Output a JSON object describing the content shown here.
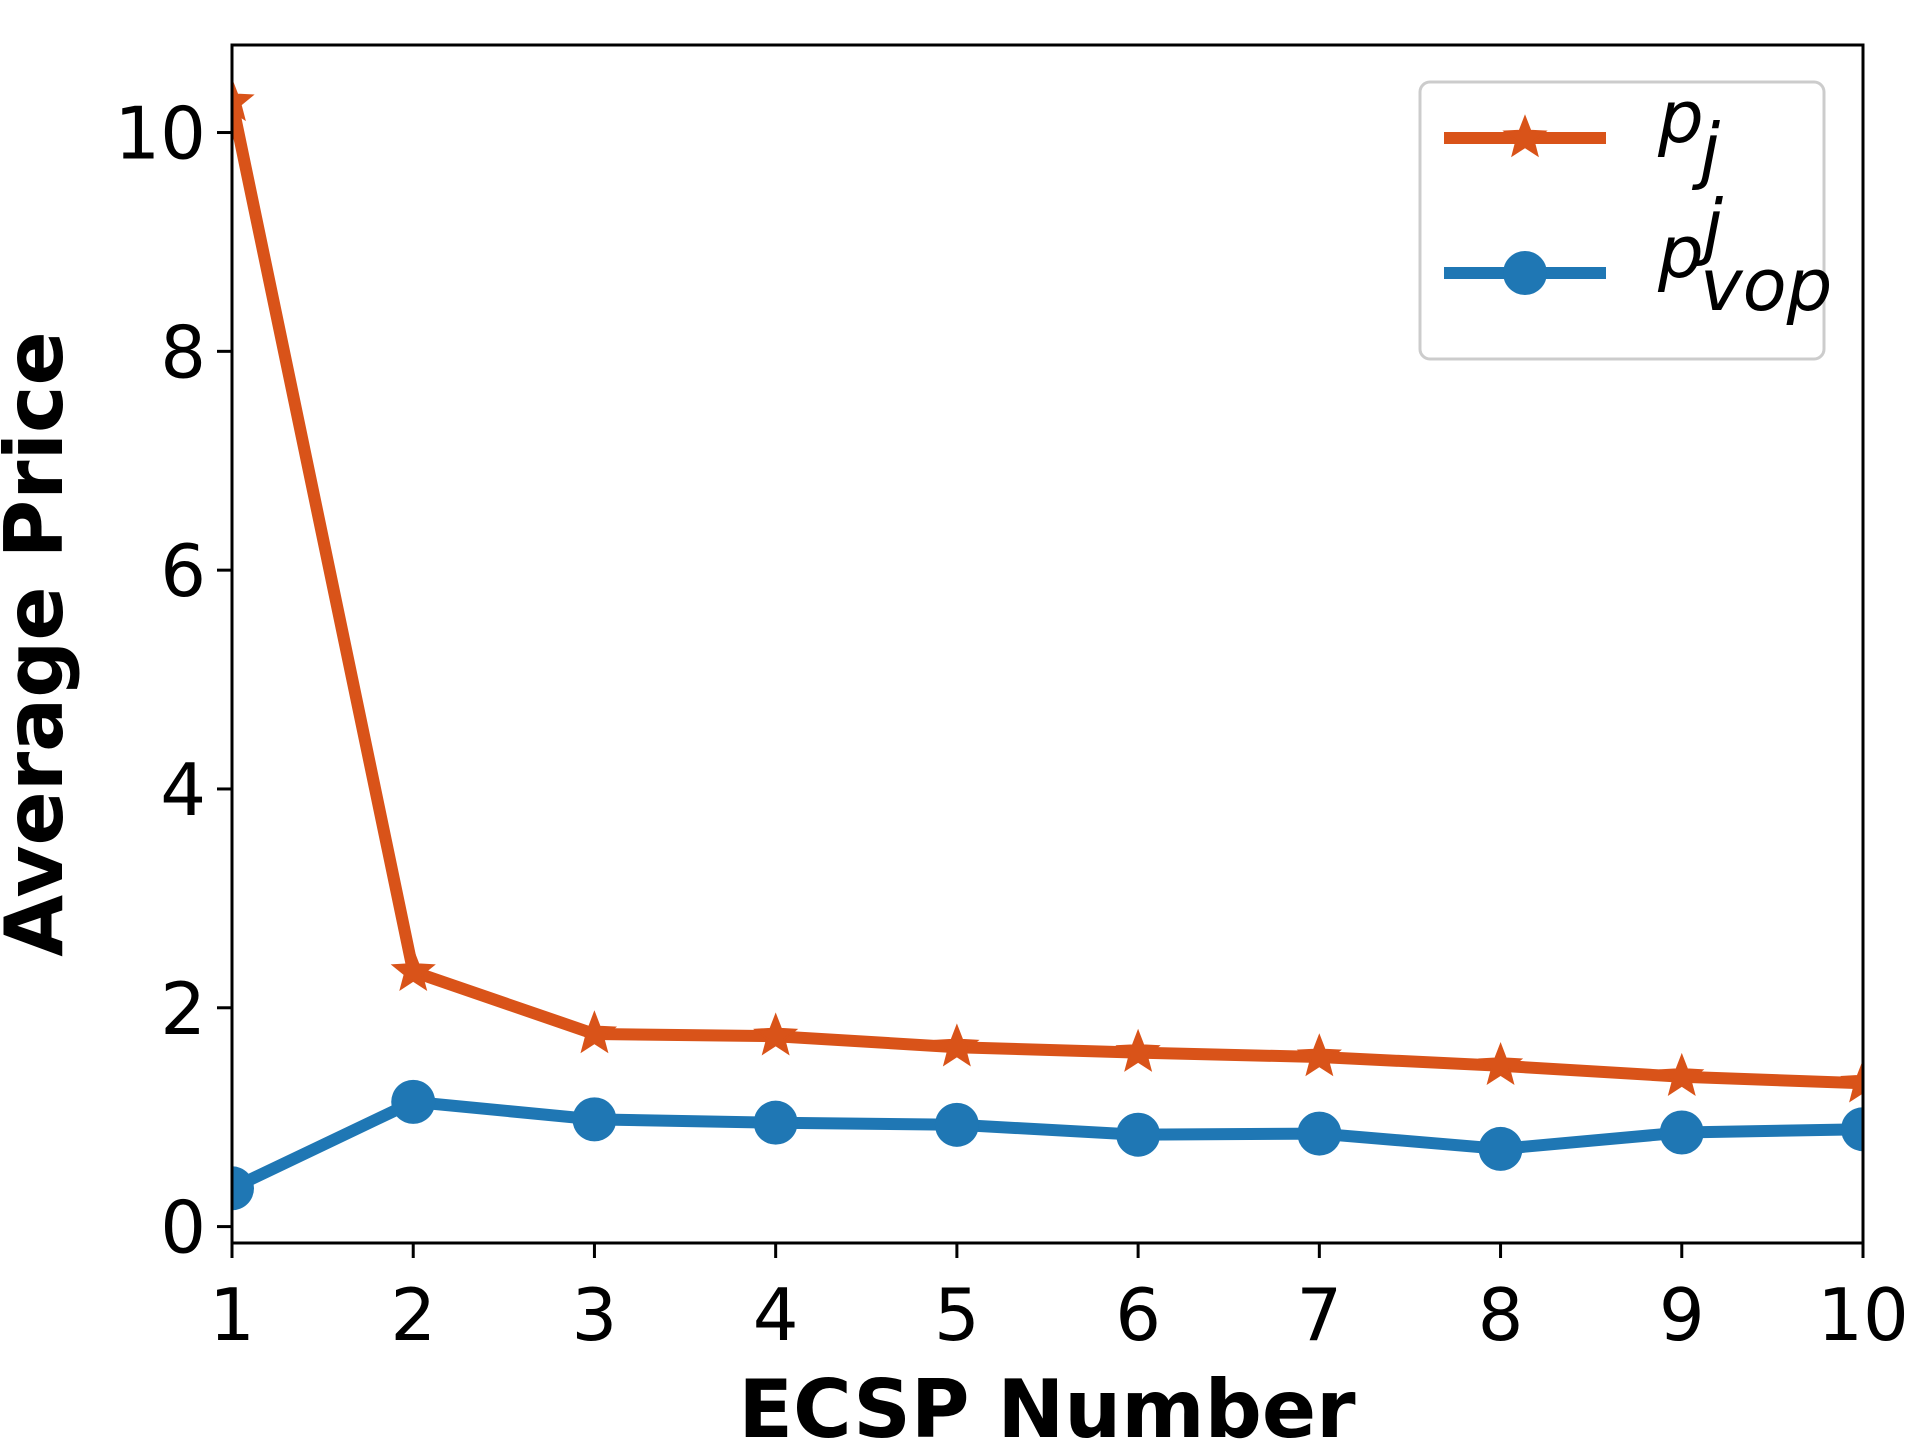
{
  "chart_data": {
    "type": "line",
    "title": "",
    "xlabel": "ECSP Number",
    "ylabel": "Average Price",
    "x": [
      1,
      2,
      3,
      4,
      5,
      6,
      7,
      8,
      9,
      10
    ],
    "xlim": [
      1,
      10
    ],
    "ylim": [
      -0.15,
      10.8
    ],
    "xticks": [
      1,
      2,
      3,
      4,
      5,
      6,
      7,
      8,
      9,
      10
    ],
    "yticks": [
      0,
      2,
      4,
      6,
      8,
      10
    ],
    "grid": false,
    "legend_position": "top-right",
    "series": [
      {
        "name": "p_j",
        "legend_base": "p",
        "legend_sub": "j",
        "legend_sup": "",
        "marker": "star",
        "color": "#d95319",
        "values": [
          10.28,
          2.33,
          1.76,
          1.74,
          1.64,
          1.59,
          1.55,
          1.47,
          1.37,
          1.31
        ]
      },
      {
        "name": "p_vop^j",
        "legend_base": "p",
        "legend_sub": "vop",
        "legend_sup": "j",
        "marker": "circle",
        "color": "#1f77b4",
        "values": [
          0.35,
          1.14,
          0.98,
          0.95,
          0.93,
          0.84,
          0.85,
          0.71,
          0.86,
          0.89
        ]
      }
    ]
  }
}
